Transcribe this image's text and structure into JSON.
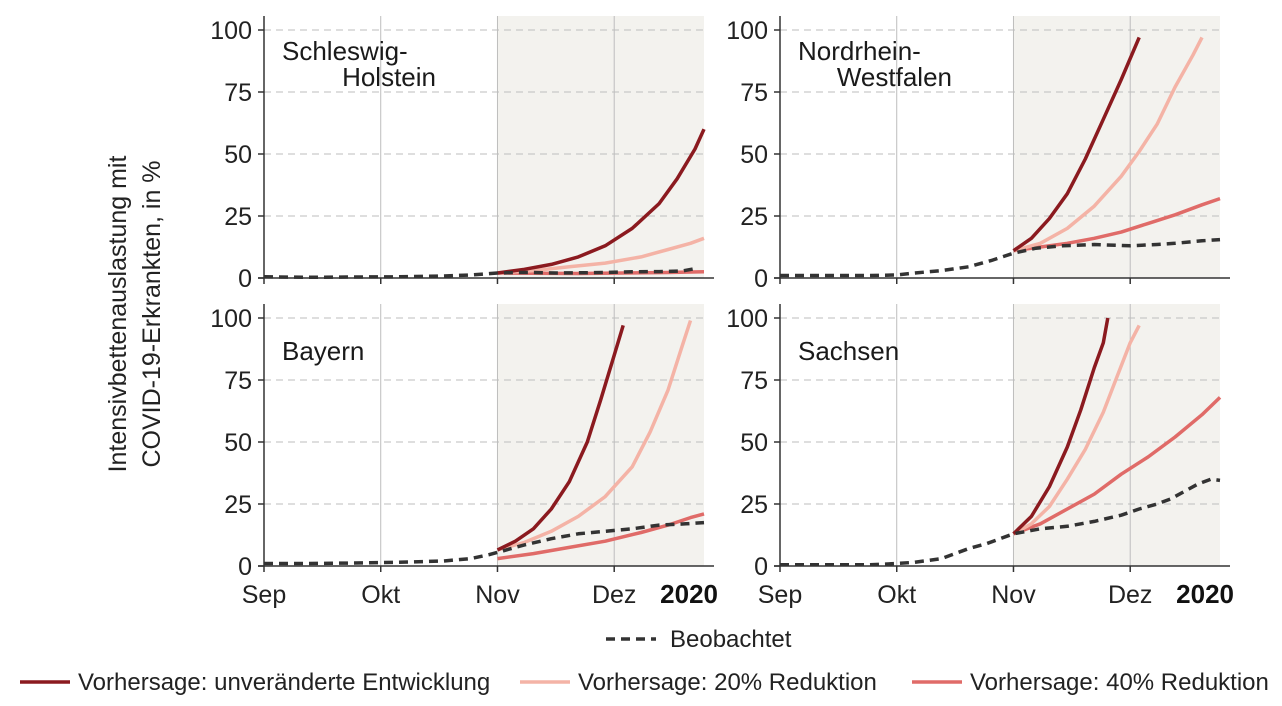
{
  "chart_data": {
    "type": "line",
    "ylabel_lines": [
      "Intensivbettenauslastung mit",
      "COVID-19-Erkrankten, in %"
    ],
    "ylim": [
      0,
      100
    ],
    "yticks": [
      0,
      25,
      50,
      75,
      100
    ],
    "xlim": [
      0,
      98
    ],
    "xticks": [
      {
        "label": "Sep",
        "x": 0
      },
      {
        "label": "Okt",
        "x": 26
      },
      {
        "label": "Nov",
        "x": 52
      },
      {
        "label": "Dez",
        "x": 78
      }
    ],
    "year_label": "2020",
    "forecast_shade_start": 52,
    "grid": true,
    "colors": {
      "observed": "#333333",
      "unchanged": "#8b1a1f",
      "r20": "#f4b3a6",
      "r40": "#e06b68",
      "shade": "#f3f2ee",
      "grid": "#bdbdbd"
    },
    "legend": {
      "observed": "Beobachtet",
      "unchanged": "Vorhersage: unveränderte Entwicklung",
      "r20": "Vorhersage: 20% Reduktion",
      "r40": "Vorhersage: 40% Reduktion"
    },
    "panels": [
      {
        "title_lines": [
          "Schleswig-",
          "Holstein"
        ],
        "series": {
          "observed": [
            [
              0,
              0.5
            ],
            [
              10,
              0.3
            ],
            [
              20,
              0.4
            ],
            [
              30,
              0.5
            ],
            [
              40,
              0.8
            ],
            [
              46,
              1.2
            ],
            [
              52,
              2
            ],
            [
              56,
              2.2
            ],
            [
              60,
              2.2
            ],
            [
              65,
              2
            ],
            [
              70,
              2.1
            ],
            [
              76,
              2.2
            ],
            [
              82,
              2.5
            ],
            [
              88,
              2.6
            ],
            [
              93,
              2.8
            ],
            [
              96,
              3.8
            ]
          ],
          "unchanged": [
            [
              52,
              2
            ],
            [
              58,
              3.5
            ],
            [
              64,
              5.5
            ],
            [
              70,
              8.5
            ],
            [
              76,
              13
            ],
            [
              82,
              20
            ],
            [
              88,
              30
            ],
            [
              92,
              40
            ],
            [
              96,
              52
            ],
            [
              98,
              60
            ]
          ],
          "r20": [
            [
              52,
              2
            ],
            [
              60,
              3
            ],
            [
              68,
              4.5
            ],
            [
              76,
              6
            ],
            [
              84,
              8.5
            ],
            [
              90,
              11.5
            ],
            [
              95,
              14
            ],
            [
              98,
              16
            ]
          ],
          "r40": [
            [
              52,
              2
            ],
            [
              60,
              1.9
            ],
            [
              70,
              1.8
            ],
            [
              80,
              2
            ],
            [
              90,
              2.2
            ],
            [
              98,
              2.5
            ]
          ]
        }
      },
      {
        "title_lines": [
          "Nordrhein-",
          "Westfalen"
        ],
        "series": {
          "observed": [
            [
              0,
              1
            ],
            [
              10,
              1
            ],
            [
              20,
              1
            ],
            [
              26,
              1.2
            ],
            [
              30,
              2
            ],
            [
              36,
              3
            ],
            [
              42,
              4.5
            ],
            [
              47,
              7
            ],
            [
              52,
              10
            ],
            [
              57,
              12
            ],
            [
              63,
              13
            ],
            [
              70,
              13.5
            ],
            [
              78,
              13
            ],
            [
              84,
              13.5
            ],
            [
              88,
              14
            ],
            [
              94,
              15
            ],
            [
              98,
              15.5
            ]
          ],
          "unchanged": [
            [
              52,
              11
            ],
            [
              56,
              16
            ],
            [
              60,
              24
            ],
            [
              64,
              34
            ],
            [
              68,
              48
            ],
            [
              72,
              64
            ],
            [
              76,
              80
            ],
            [
              80,
              97
            ]
          ],
          "r20": [
            [
              52,
              11
            ],
            [
              58,
              14
            ],
            [
              64,
              20
            ],
            [
              70,
              29
            ],
            [
              76,
              41
            ],
            [
              80,
              51
            ],
            [
              84,
              62
            ],
            [
              88,
              77
            ],
            [
              92,
              90
            ],
            [
              94,
              97
            ]
          ],
          "r40": [
            [
              52,
              11
            ],
            [
              58,
              12.5
            ],
            [
              64,
              14
            ],
            [
              70,
              16
            ],
            [
              76,
              18.5
            ],
            [
              82,
              22
            ],
            [
              88,
              25.5
            ],
            [
              94,
              29.5
            ],
            [
              98,
              32
            ]
          ]
        }
      },
      {
        "title_lines": [
          "Bayern"
        ],
        "series": {
          "observed": [
            [
              0,
              1
            ],
            [
              10,
              1
            ],
            [
              20,
              1.2
            ],
            [
              30,
              1.5
            ],
            [
              40,
              2
            ],
            [
              46,
              3
            ],
            [
              50,
              4.5
            ],
            [
              52,
              5.5
            ],
            [
              58,
              8.5
            ],
            [
              64,
              11
            ],
            [
              70,
              13
            ],
            [
              76,
              14
            ],
            [
              82,
              15
            ],
            [
              88,
              16.5
            ],
            [
              94,
              17
            ],
            [
              98,
              17.5
            ]
          ],
          "unchanged": [
            [
              52,
              6.5
            ],
            [
              56,
              10
            ],
            [
              60,
              15
            ],
            [
              64,
              23
            ],
            [
              68,
              34
            ],
            [
              72,
              50
            ],
            [
              75,
              67
            ],
            [
              78,
              85
            ],
            [
              80,
              97
            ]
          ],
          "r20": [
            [
              52,
              6.5
            ],
            [
              58,
              9.5
            ],
            [
              64,
              14
            ],
            [
              70,
              20
            ],
            [
              76,
              28
            ],
            [
              82,
              40
            ],
            [
              86,
              54
            ],
            [
              90,
              71
            ],
            [
              93,
              88
            ],
            [
              95,
              99
            ]
          ],
          "r40": [
            [
              52,
              3
            ],
            [
              60,
              5
            ],
            [
              68,
              7.5
            ],
            [
              76,
              10
            ],
            [
              84,
              13.5
            ],
            [
              90,
              16.5
            ],
            [
              95,
              19.5
            ],
            [
              98,
              21
            ]
          ]
        }
      },
      {
        "title_lines": [
          "Sachsen"
        ],
        "series": {
          "observed": [
            [
              0,
              0.5
            ],
            [
              10,
              0.5
            ],
            [
              20,
              0.5
            ],
            [
              26,
              1
            ],
            [
              30,
              1.5
            ],
            [
              36,
              3
            ],
            [
              42,
              7
            ],
            [
              46,
              9
            ],
            [
              52,
              13
            ],
            [
              58,
              15
            ],
            [
              64,
              16
            ],
            [
              70,
              18
            ],
            [
              76,
              20.5
            ],
            [
              80,
              23
            ],
            [
              84,
              25
            ],
            [
              87,
              27
            ],
            [
              90,
              30
            ],
            [
              93,
              33
            ],
            [
              96,
              35
            ],
            [
              98,
              34.5
            ]
          ],
          "unchanged": [
            [
              52,
              13
            ],
            [
              56,
              20
            ],
            [
              60,
              32
            ],
            [
              64,
              48
            ],
            [
              67,
              63
            ],
            [
              70,
              80
            ],
            [
              72,
              90
            ],
            [
              73,
              100
            ]
          ],
          "r20": [
            [
              52,
              13
            ],
            [
              56,
              17
            ],
            [
              60,
              24
            ],
            [
              64,
              35
            ],
            [
              68,
              47
            ],
            [
              72,
              62
            ],
            [
              75,
              76
            ],
            [
              78,
              90
            ],
            [
              80,
              97
            ]
          ],
          "r40": [
            [
              52,
              13
            ],
            [
              58,
              17
            ],
            [
              64,
              23
            ],
            [
              70,
              29
            ],
            [
              76,
              37
            ],
            [
              82,
              44
            ],
            [
              88,
              52
            ],
            [
              94,
              61
            ],
            [
              98,
              68
            ]
          ]
        }
      }
    ]
  }
}
